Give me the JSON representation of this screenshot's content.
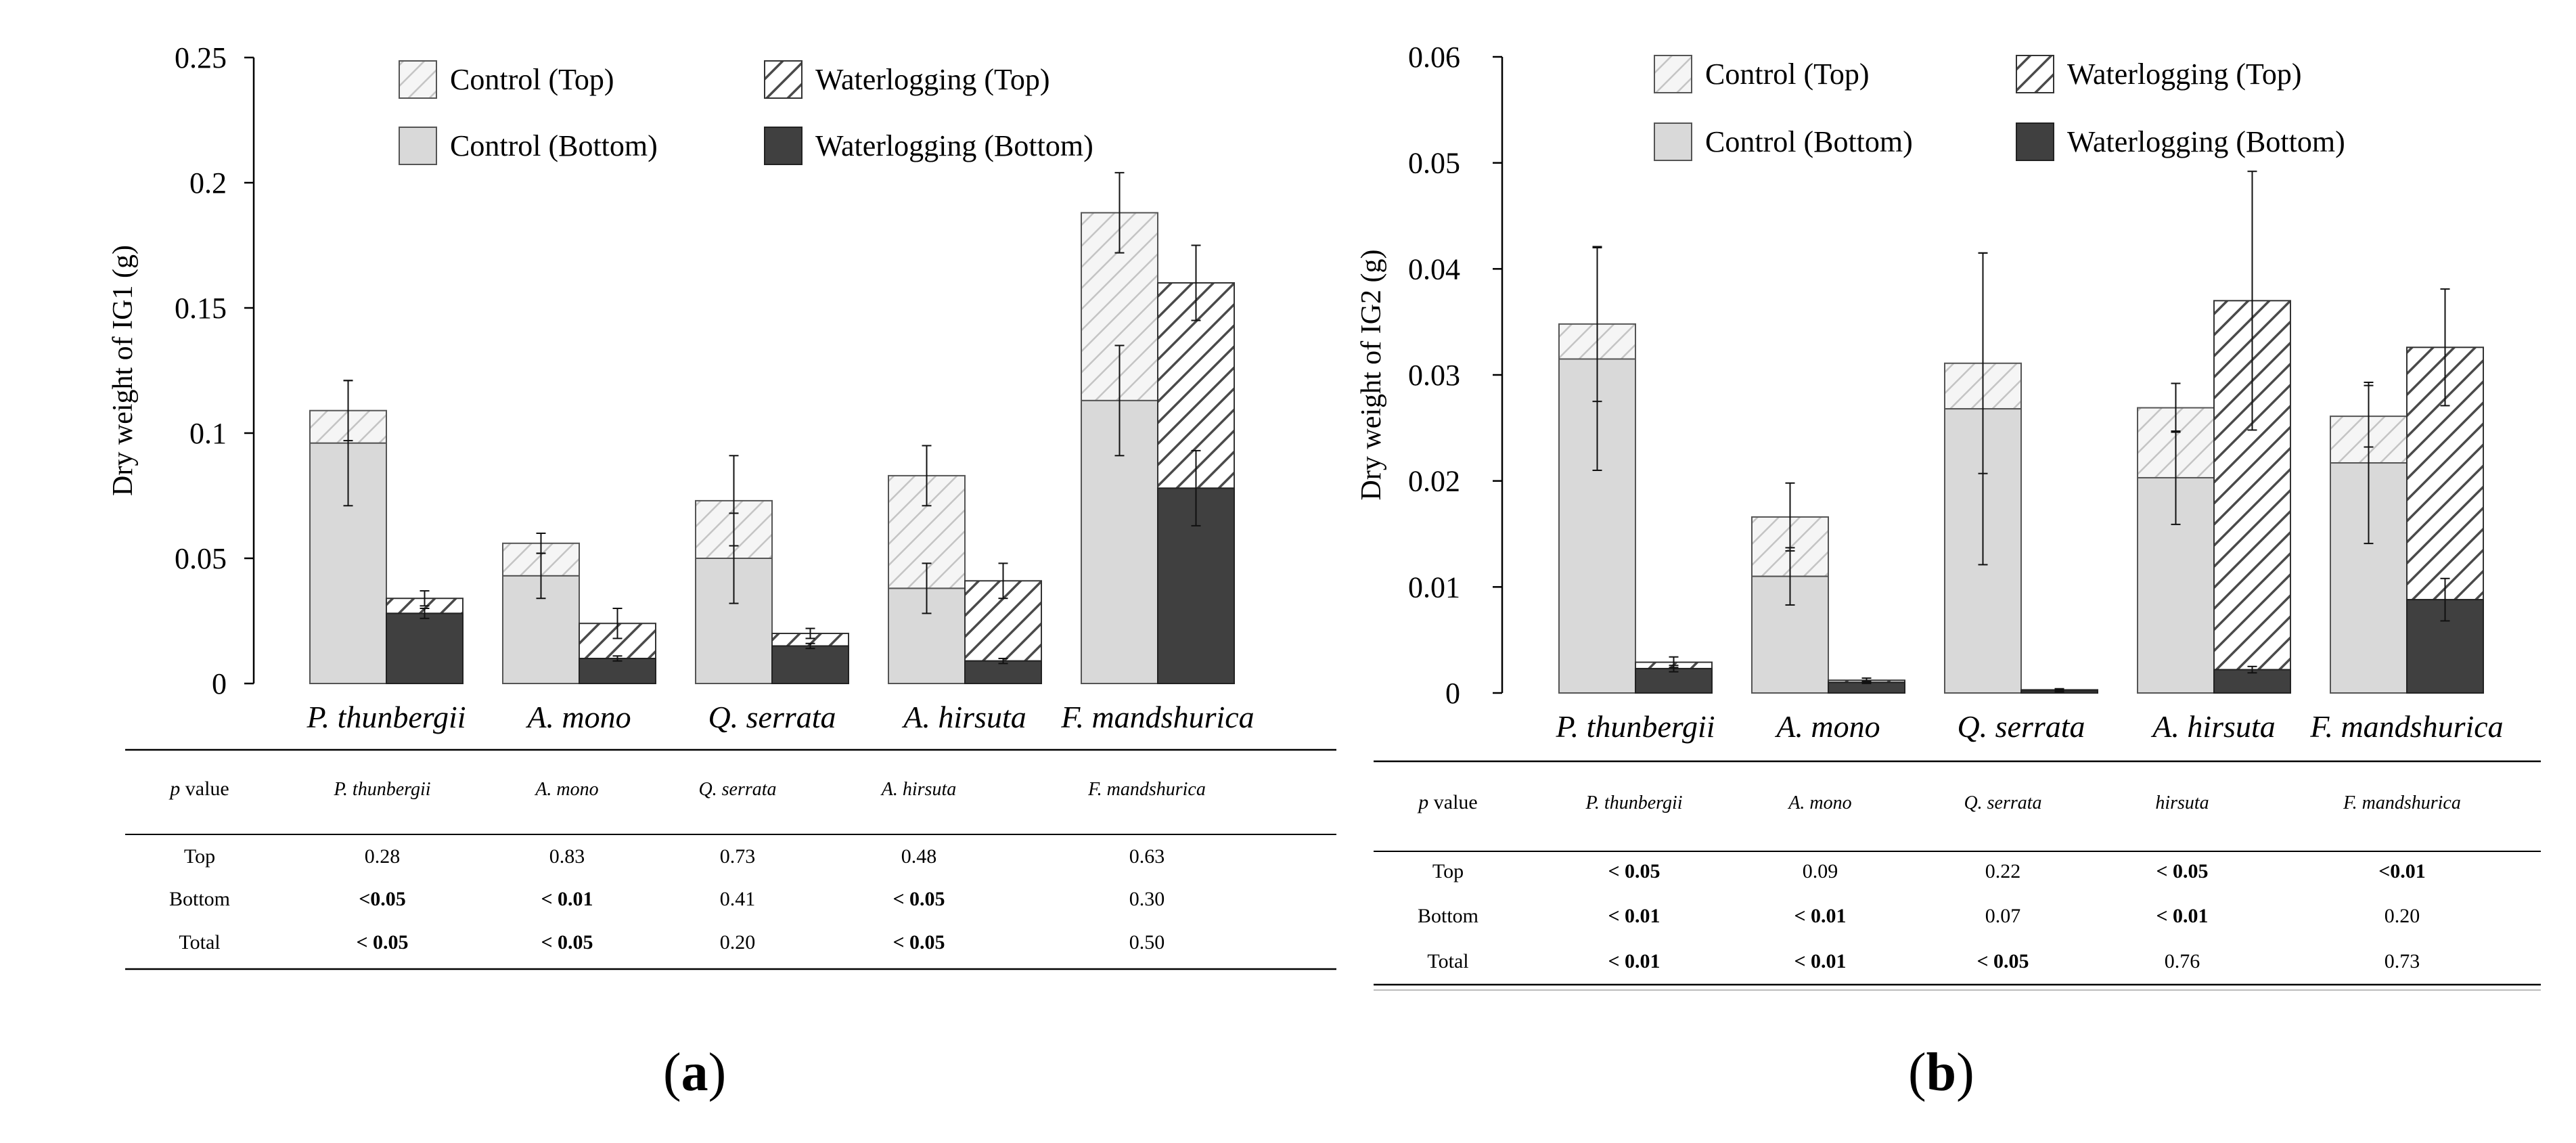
{
  "panels": [
    {
      "label": "a",
      "ylabel": "Dry weight of IG1 (g)",
      "table": {
        "header": [
          "p value",
          "P. thunbergii",
          "A. mono",
          "Q. serrata",
          "A. hirsuta",
          "F. mandshurica"
        ],
        "rows": [
          {
            "label": "Top",
            "cells": [
              "0.28",
              "0.83",
              "0.73",
              "0.48",
              "0.63"
            ],
            "bold": [
              false,
              false,
              false,
              false,
              false
            ]
          },
          {
            "label": "Bottom",
            "cells": [
              "<0.05",
              "< 0.01",
              "0.41",
              "< 0.05",
              "0.30"
            ],
            "bold": [
              true,
              true,
              false,
              true,
              false
            ]
          },
          {
            "label": "Total",
            "cells": [
              "< 0.05",
              "<  0.05",
              "0.20",
              "< 0.05",
              "0.50"
            ],
            "bold": [
              true,
              true,
              false,
              true,
              false
            ]
          }
        ]
      }
    },
    {
      "label": "b",
      "ylabel": "Dry weight of IG2 (g)",
      "table": {
        "header": [
          "p value",
          "P. thunbergii",
          "A. mono",
          "Q. serrata",
          "hirsuta",
          "F. mandshurica"
        ],
        "rows": [
          {
            "label": "Top",
            "cells": [
              "< 0.05",
              "0.09",
              "0.22",
              "< 0.05",
              "<0.01"
            ],
            "bold": [
              true,
              false,
              false,
              true,
              true
            ]
          },
          {
            "label": "Bottom",
            "cells": [
              "< 0.01",
              "< 0.01",
              "0.07",
              "< 0.01",
              "0.20"
            ],
            "bold": [
              true,
              true,
              false,
              true,
              false
            ]
          },
          {
            "label": "Total",
            "cells": [
              "< 0.01",
              "< 0.01",
              "< 0.05",
              "0.76",
              "0.73"
            ],
            "bold": [
              true,
              true,
              true,
              false,
              false
            ]
          }
        ]
      }
    }
  ],
  "chart_data": [
    {
      "type": "bar",
      "stacked": true,
      "title": "",
      "xlabel": "",
      "ylabel": "Dry weight of IG1 (g)",
      "ylim": [
        0,
        0.25
      ],
      "yticks": [
        0,
        0.05,
        0.1,
        0.15,
        0.2,
        0.25
      ],
      "ytick_labels": [
        "0",
        "0.05",
        "0.1",
        "0.15",
        "0.2",
        "0.25"
      ],
      "categories": [
        "P. thunbergii",
        "A. mono",
        "Q. serrata",
        "A. hirsuta",
        "F. mandshurica"
      ],
      "legend": [
        "Control (Top)",
        "Waterlogging (Top)",
        "Control (Bottom)",
        "Waterlogging (Bottom)"
      ],
      "legend_position": "top",
      "control": {
        "bottom": [
          0.096,
          0.043,
          0.05,
          0.038,
          0.113
        ],
        "total": [
          0.109,
          0.056,
          0.073,
          0.083,
          0.188
        ],
        "bottom_err": [
          0.025,
          0.009,
          0.018,
          0.01,
          0.022
        ],
        "total_err": [
          0.012,
          0.004,
          0.018,
          0.012,
          0.016
        ]
      },
      "waterlogging": {
        "bottom": [
          0.028,
          0.01,
          0.015,
          0.009,
          0.078
        ],
        "total": [
          0.034,
          0.024,
          0.02,
          0.041,
          0.16
        ],
        "bottom_err": [
          0.002,
          0.001,
          0.001,
          0.001,
          0.015
        ],
        "total_err": [
          0.003,
          0.006,
          0.002,
          0.007,
          0.015
        ]
      }
    },
    {
      "type": "bar",
      "stacked": true,
      "title": "",
      "xlabel": "",
      "ylabel": "Dry weight of IG2 (g)",
      "ylim": [
        0,
        0.06
      ],
      "yticks": [
        0,
        0.01,
        0.02,
        0.03,
        0.04,
        0.05,
        0.06
      ],
      "ytick_labels": [
        "0",
        "0.01",
        "0.02",
        "0.03",
        "0.04",
        "0.05",
        "0.06"
      ],
      "categories": [
        "P. thunbergii",
        "A. mono",
        "Q. serrata",
        "A. hirsuta",
        "F. mandshurica"
      ],
      "legend": [
        "Control (Top)",
        "Waterlogging (Top)",
        "Control (Bottom)",
        "Waterlogging (Bottom)"
      ],
      "legend_position": "top",
      "control": {
        "bottom": [
          0.0315,
          0.011,
          0.0268,
          0.0203,
          0.0217
        ],
        "total": [
          0.0348,
          0.0166,
          0.0311,
          0.0269,
          0.0261
        ],
        "bottom_err": [
          0.0105,
          0.0027,
          0.0147,
          0.0044,
          0.0076
        ],
        "total_err": [
          0.0073,
          0.0032,
          0.0104,
          0.0023,
          0.0029
        ]
      },
      "waterlogging": {
        "bottom": [
          0.0023,
          0.001,
          0.0002,
          0.0022,
          0.0088
        ],
        "total": [
          0.0029,
          0.0012,
          0.0003,
          0.037,
          0.0326
        ],
        "bottom_err": [
          0.0003,
          0.0001,
          0.0001,
          0.0003,
          0.002
        ],
        "total_err": [
          0.0005,
          0.0002,
          0.0001,
          0.0122,
          0.0055
        ]
      }
    }
  ]
}
